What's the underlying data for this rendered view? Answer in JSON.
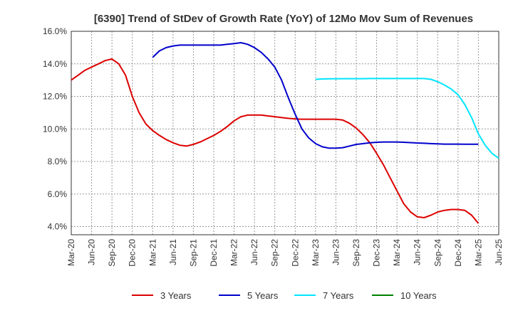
{
  "chart_data": {
    "type": "line",
    "title": "[6390]  Trend of StDev of Growth Rate (YoY) of 12Mo Mov Sum of Revenues",
    "xlabel": "",
    "ylabel": "",
    "ylim": [
      3.5,
      16.0
    ],
    "yticks": [
      4.0,
      6.0,
      8.0,
      10.0,
      12.0,
      14.0,
      16.0
    ],
    "y_tick_labels": [
      "4.0%",
      "6.0%",
      "8.0%",
      "10.0%",
      "12.0%",
      "14.0%",
      "16.0%"
    ],
    "x_tick_labels": [
      "Mar-20",
      "Jun-20",
      "Sep-20",
      "Dec-20",
      "Mar-21",
      "Jun-21",
      "Sep-21",
      "Dec-21",
      "Mar-22",
      "Jun-22",
      "Sep-22",
      "Dec-22",
      "Mar-23",
      "Jun-23",
      "Sep-23",
      "Dec-23",
      "Mar-24",
      "Jun-24",
      "Sep-24",
      "Dec-24",
      "Mar-25",
      "Jun-25"
    ],
    "x_start": "Mar-20",
    "n_months": 63,
    "grid": true,
    "legend_position": "bottom",
    "series": [
      {
        "name": "3 Years",
        "color": "#dd0000",
        "start_index": 0,
        "values": [
          13.0,
          13.3,
          13.6,
          13.8,
          14.0,
          14.2,
          14.3,
          14.0,
          13.3,
          12.0,
          11.0,
          10.3,
          9.9,
          9.6,
          9.35,
          9.15,
          9.0,
          8.95,
          9.05,
          9.2,
          9.4,
          9.6,
          9.85,
          10.15,
          10.5,
          10.75,
          10.85,
          10.85,
          10.85,
          10.8,
          10.75,
          10.7,
          10.65,
          10.62,
          10.6,
          10.6,
          10.6,
          10.6,
          10.6,
          10.6,
          10.55,
          10.35,
          10.05,
          9.65,
          9.15,
          8.5,
          7.8,
          7.0,
          6.2,
          5.4,
          4.9,
          4.6,
          4.55,
          4.7,
          4.9,
          5.0,
          5.05,
          5.05,
          5.0,
          4.7,
          4.2
        ]
      },
      {
        "name": "5 Years",
        "color": "#0000cc",
        "start_index": 12,
        "values": [
          14.4,
          14.8,
          15.0,
          15.1,
          15.15,
          15.15,
          15.15,
          15.15,
          15.15,
          15.15,
          15.15,
          15.2,
          15.25,
          15.3,
          15.2,
          15.0,
          14.7,
          14.3,
          13.8,
          13.0,
          11.9,
          10.9,
          10.0,
          9.45,
          9.1,
          8.9,
          8.82,
          8.82,
          8.85,
          8.95,
          9.05,
          9.1,
          9.15,
          9.18,
          9.2,
          9.2,
          9.2,
          9.18,
          9.16,
          9.14,
          9.12,
          9.1,
          9.08,
          9.07,
          9.07,
          9.07,
          9.06,
          9.06,
          9.06
        ]
      },
      {
        "name": "7 Years",
        "color": "#00e5ff",
        "start_index": 36,
        "values": [
          13.05,
          13.07,
          13.08,
          13.08,
          13.09,
          13.09,
          13.09,
          13.09,
          13.1,
          13.1,
          13.1,
          13.1,
          13.1,
          13.1,
          13.1,
          13.1,
          13.1,
          13.05,
          12.9,
          12.7,
          12.45,
          12.1,
          11.5,
          10.7,
          9.7,
          9.0,
          8.5,
          8.2
        ]
      },
      {
        "name": "10 Years",
        "color": "#008000",
        "start_index": 0,
        "values": []
      }
    ]
  }
}
